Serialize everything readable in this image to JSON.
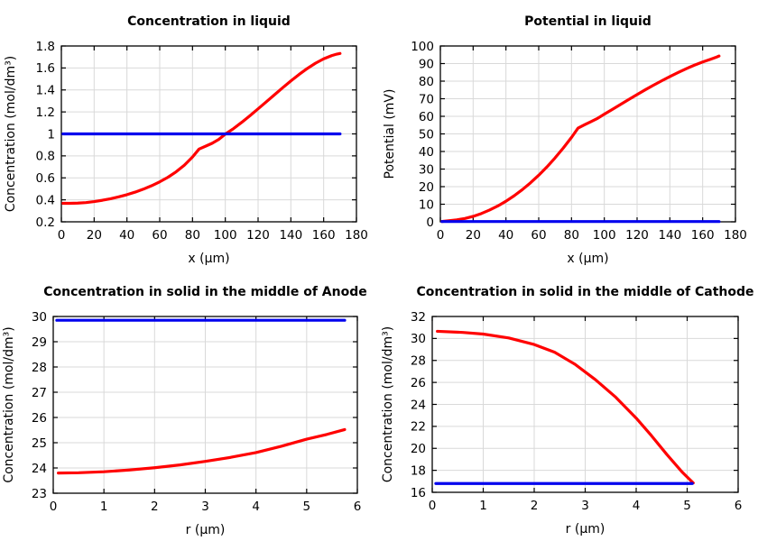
{
  "colors": {
    "background": "#ffffff",
    "red_series": "#ff0000",
    "blue_series": "#0000ee",
    "grid": "#d9d9d9",
    "axis": "#000000"
  },
  "chart_data": [
    {
      "type": "line",
      "title": "Concentration in liquid",
      "xlabel": "x (µm)",
      "ylabel": "Concentration (mol/dm³)",
      "xlim": [
        0,
        180
      ],
      "ylim": [
        0.2,
        1.8
      ],
      "xticks": [
        0,
        20,
        40,
        60,
        80,
        100,
        120,
        140,
        160,
        180
      ],
      "xtick_labels": [
        "0",
        "20",
        "40",
        "60",
        "80",
        "100",
        "120",
        "140",
        "160",
        "180"
      ],
      "yticks": [
        0.2,
        0.4,
        0.6,
        0.8,
        1,
        1.2,
        1.4,
        1.6,
        1.8
      ],
      "ytick_labels": [
        "0.2",
        "0.4",
        "0.6",
        "0.8",
        "1",
        "1.2",
        "1.4",
        "1.6",
        "1.8"
      ],
      "grid": true,
      "legend": null,
      "series": [
        {
          "name": "red-curve",
          "color": "#ff0000",
          "x": [
            1,
            5,
            10,
            15,
            20,
            25,
            30,
            35,
            40,
            45,
            50,
            55,
            60,
            65,
            70,
            75,
            80,
            84,
            88,
            92,
            96,
            100,
            105,
            110,
            115,
            120,
            125,
            130,
            135,
            140,
            145,
            150,
            155,
            160,
            165,
            168,
            170
          ],
          "y": [
            0.368,
            0.368,
            0.37,
            0.375,
            0.384,
            0.396,
            0.41,
            0.427,
            0.447,
            0.47,
            0.497,
            0.528,
            0.564,
            0.605,
            0.655,
            0.715,
            0.79,
            0.862,
            0.888,
            0.915,
            0.95,
            0.998,
            1.048,
            1.105,
            1.165,
            1.228,
            1.292,
            1.356,
            1.42,
            1.482,
            1.541,
            1.595,
            1.643,
            1.683,
            1.713,
            1.726,
            1.732
          ]
        },
        {
          "name": "blue-line",
          "color": "#0000ee",
          "x": [
            1,
            170
          ],
          "y": [
            1.0,
            1.0
          ]
        }
      ]
    },
    {
      "type": "line",
      "title": "Potential in liquid",
      "xlabel": "x (µm)",
      "ylabel": "Potential (mV)",
      "xlim": [
        0,
        180
      ],
      "ylim": [
        0,
        100
      ],
      "xticks": [
        0,
        20,
        40,
        60,
        80,
        100,
        120,
        140,
        160,
        180
      ],
      "xtick_labels": [
        "0",
        "20",
        "40",
        "60",
        "80",
        "100",
        "120",
        "140",
        "160",
        "180"
      ],
      "yticks": [
        0,
        10,
        20,
        30,
        40,
        50,
        60,
        70,
        80,
        90,
        100
      ],
      "ytick_labels": [
        "0",
        "10",
        "20",
        "30",
        "40",
        "50",
        "60",
        "70",
        "80",
        "90",
        "100"
      ],
      "grid": true,
      "legend": null,
      "series": [
        {
          "name": "red-curve",
          "color": "#ff0000",
          "x": [
            1,
            5,
            10,
            15,
            20,
            25,
            30,
            35,
            40,
            45,
            50,
            55,
            60,
            65,
            70,
            75,
            80,
            84,
            88,
            92,
            96,
            100,
            105,
            110,
            115,
            120,
            125,
            130,
            135,
            140,
            145,
            150,
            155,
            160,
            165,
            168,
            170
          ],
          "y": [
            0.2,
            0.6,
            1.1,
            1.9,
            3.1,
            4.7,
            6.7,
            9.0,
            11.7,
            14.8,
            18.3,
            22.2,
            26.5,
            31.2,
            36.4,
            42.0,
            48.0,
            53.3,
            55.2,
            57.0,
            58.9,
            61.2,
            64.0,
            66.8,
            69.6,
            72.4,
            75.1,
            77.7,
            80.2,
            82.6,
            84.9,
            87.1,
            89.1,
            90.9,
            92.5,
            93.5,
            94.3
          ]
        },
        {
          "name": "blue-line",
          "color": "#0000ee",
          "x": [
            1,
            170
          ],
          "y": [
            0.15,
            0.15
          ]
        }
      ]
    },
    {
      "type": "line",
      "title": "Concentration in solid in the middle of Anode",
      "xlabel": "r (µm)",
      "ylabel": "Concentration (mol/dm³)",
      "xlim": [
        0,
        6
      ],
      "ylim": [
        23,
        30
      ],
      "xticks": [
        0,
        1,
        2,
        3,
        4,
        5,
        6
      ],
      "xtick_labels": [
        "0",
        "1",
        "2",
        "3",
        "4",
        "5",
        "6"
      ],
      "yticks": [
        23,
        24,
        25,
        26,
        27,
        28,
        29,
        30
      ],
      "ytick_labels": [
        "23",
        "24",
        "25",
        "26",
        "27",
        "28",
        "29",
        "30"
      ],
      "grid": true,
      "legend": null,
      "series": [
        {
          "name": "red-curve",
          "color": "#ff0000",
          "x": [
            0.1,
            0.5,
            1.0,
            1.5,
            2.0,
            2.5,
            3.0,
            3.5,
            4.0,
            4.5,
            5.0,
            5.4,
            5.75
          ],
          "y": [
            23.8,
            23.81,
            23.85,
            23.92,
            24.01,
            24.12,
            24.26,
            24.42,
            24.61,
            24.86,
            25.14,
            25.33,
            25.52
          ]
        },
        {
          "name": "blue-line",
          "color": "#0000ee",
          "x": [
            0.07,
            5.75
          ],
          "y": [
            29.85,
            29.85
          ]
        }
      ]
    },
    {
      "type": "line",
      "title": "Concentration in solid in the middle of Cathode",
      "xlabel": "r (µm)",
      "ylabel": "Concentration (mol/dm³)",
      "xlim": [
        0,
        6
      ],
      "ylim": [
        16,
        32
      ],
      "xticks": [
        0,
        1,
        2,
        3,
        4,
        5,
        6
      ],
      "xtick_labels": [
        "0",
        "1",
        "2",
        "3",
        "4",
        "5",
        "6"
      ],
      "yticks": [
        16,
        18,
        20,
        22,
        24,
        26,
        28,
        30,
        32
      ],
      "ytick_labels": [
        "16",
        "18",
        "20",
        "22",
        "24",
        "26",
        "28",
        "30",
        "32"
      ],
      "grid": true,
      "legend": null,
      "series": [
        {
          "name": "red-curve",
          "color": "#ff0000",
          "x": [
            0.1,
            0.6,
            1.0,
            1.5,
            2.0,
            2.4,
            2.8,
            3.2,
            3.6,
            4.0,
            4.3,
            4.6,
            4.9,
            5.12
          ],
          "y": [
            30.65,
            30.55,
            30.4,
            30.05,
            29.45,
            28.75,
            27.65,
            26.25,
            24.65,
            22.75,
            21.15,
            19.45,
            17.85,
            16.85
          ]
        },
        {
          "name": "blue-line",
          "color": "#0000ee",
          "x": [
            0.07,
            5.1
          ],
          "y": [
            16.8,
            16.8
          ]
        }
      ]
    }
  ]
}
